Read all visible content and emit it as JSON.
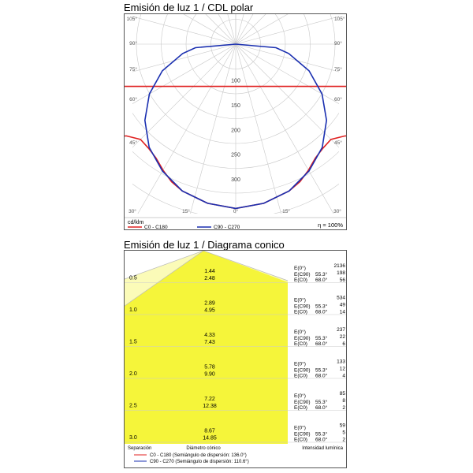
{
  "polar": {
    "title": "Emisión de luz 1 / CDL polar",
    "unit_label": "cd/klm",
    "efficiency": "η = 100%",
    "angle_labels_left": [
      "105°",
      "90°",
      "75°",
      "60°",
      "45°"
    ],
    "angle_labels_right": [
      "105°",
      "90°",
      "75°",
      "60°",
      "45°"
    ],
    "bottom_angle_labels": [
      "30°",
      "15°",
      "0°",
      "15°",
      "30°"
    ],
    "radial_labels": [
      "100",
      "150",
      "200",
      "250",
      "300"
    ],
    "legend": [
      {
        "label": "C0 - C180",
        "color": "#e02020"
      },
      {
        "label": "C90 - C270",
        "color": "#1a2fb0"
      }
    ]
  },
  "cone": {
    "title": "Emisión de luz 1 / Diagrama conico",
    "rows": [
      {
        "height": "0.5",
        "d1": "1.44",
        "d2": "2.48",
        "e0": "2136",
        "ec90": "198",
        "ec0": "56"
      },
      {
        "height": "1.0",
        "d1": "2.89",
        "d2": "4.95",
        "e0": "534",
        "ec90": "49",
        "ec0": "14"
      },
      {
        "height": "1.5",
        "d1": "4.33",
        "d2": "7.43",
        "e0": "237",
        "ec90": "22",
        "ec0": "6"
      },
      {
        "height": "2.0",
        "d1": "5.78",
        "d2": "9.90",
        "e0": "133",
        "ec90": "12",
        "ec0": "4"
      },
      {
        "height": "2.5",
        "d1": "7.22",
        "d2": "12.38",
        "e0": "85",
        "ec90": "8",
        "ec0": "2"
      },
      {
        "height": "3.0",
        "d1": "8.67",
        "d2": "14.85",
        "e0": "59",
        "ec90": "5",
        "ec0": "2"
      }
    ],
    "e_labels": {
      "e0": "E(0°)",
      "ec90": "E(C90)",
      "ec0": "E(C0)"
    },
    "angles": {
      "c90": "55.3°",
      "c0": "68.0°"
    },
    "footer": {
      "col1": "Separación",
      "col2": "Diámetro cónico",
      "col3": "Intensidad lumínica"
    },
    "legend": [
      {
        "label": "C0 - C180 (Semiángulo de dispersión: 136.0°)",
        "color": "#e02020"
      },
      {
        "label": "C90 - C270 (Semiángulo de dispersión: 110.6°)",
        "color": "#1a2fb0"
      }
    ],
    "fill_color": "#f5f53a"
  }
}
